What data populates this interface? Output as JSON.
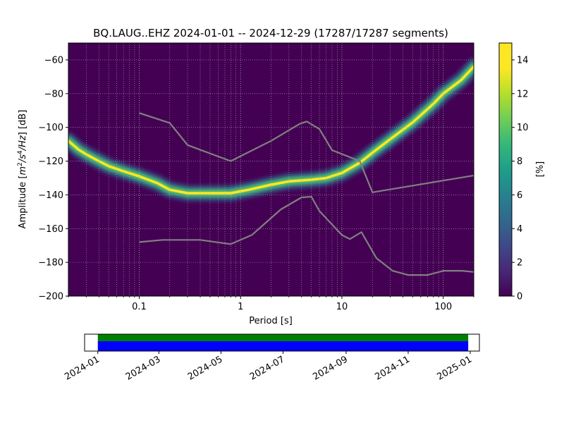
{
  "chart_data": [
    {
      "type": "heatmap",
      "title": "BQ.LAUG..EHZ   2024-01-01 -- 2024-12-29  (17287/17287 segments)",
      "xlabel": "Period [s]",
      "ylabel": "Amplitude [m²/s⁴/Hz] [dB]",
      "ylabel_parts": {
        "prefix": "Amplitude [",
        "m": "m",
        "sup2": "2",
        "mid": "/s",
        "sup4": "4",
        "hz": "/Hz",
        "suffix": "] [dB]"
      },
      "x_scale": "log",
      "xlim": [
        0.02,
        200
      ],
      "ylim": [
        -200,
        -50
      ],
      "x_ticks": [
        {
          "value": 0.1,
          "label": "0.1"
        },
        {
          "value": 1,
          "label": "1"
        },
        {
          "value": 10,
          "label": "10"
        },
        {
          "value": 100,
          "label": "100"
        }
      ],
      "y_ticks": [
        {
          "value": -200,
          "label": "−200"
        },
        {
          "value": -180,
          "label": "−180"
        },
        {
          "value": -160,
          "label": "−160"
        },
        {
          "value": -140,
          "label": "−140"
        },
        {
          "value": -120,
          "label": "−120"
        },
        {
          "value": -100,
          "label": "−100"
        },
        {
          "value": -80,
          "label": "−80"
        },
        {
          "value": -60,
          "label": "−60"
        }
      ],
      "grid": true,
      "colormap": "viridis",
      "background_color": "#440154",
      "colorbar": {
        "label": "[%]",
        "range": [
          0,
          15
        ],
        "ticks": [
          {
            "value": 0,
            "label": "0"
          },
          {
            "value": 2,
            "label": "2"
          },
          {
            "value": 4,
            "label": "4"
          },
          {
            "value": 6,
            "label": "6"
          },
          {
            "value": 8,
            "label": "8"
          },
          {
            "value": 10,
            "label": "10"
          },
          {
            "value": 12,
            "label": "12"
          },
          {
            "value": 14,
            "label": "14"
          }
        ]
      },
      "mode_curve": {
        "period": [
          0.02,
          0.025,
          0.03,
          0.04,
          0.05,
          0.07,
          0.1,
          0.15,
          0.2,
          0.3,
          0.5,
          0.8,
          1.2,
          2,
          3,
          5,
          7,
          10,
          15,
          20,
          30,
          50,
          80,
          100,
          150,
          200
        ],
        "db": [
          -108,
          -113,
          -116,
          -120,
          -123,
          -126,
          -129,
          -133,
          -137,
          -139,
          -139,
          -139,
          -137,
          -134,
          -132,
          -131,
          -130,
          -127,
          -121,
          -115,
          -107,
          -97,
          -86,
          -80,
          -72,
          -64
        ]
      },
      "noise_model_curves": [
        {
          "period": [
            0.1,
            0.2,
            0.3,
            0.8,
            2,
            3.8,
            4.5,
            6,
            8,
            15,
            20,
            200
          ],
          "db": [
            -91.5,
            -97.4,
            -110.5,
            -120,
            -108,
            -98,
            -96.5,
            -101,
            -113.5,
            -120,
            -138.5,
            -128.5
          ]
        },
        {
          "period": [
            0.1,
            0.17,
            0.4,
            0.8,
            1.3,
            2.5,
            4,
            5,
            6,
            10,
            12,
            15.6,
            21.9,
            31.6,
            45,
            70,
            101,
            154,
            200
          ],
          "db": [
            -168,
            -166.7,
            -166.7,
            -169.2,
            -163.7,
            -148.6,
            -141.5,
            -141.1,
            -149.6,
            -163.8,
            -166.2,
            -162.1,
            -177.5,
            -185,
            -187.5,
            -187.5,
            -185,
            -185,
            -185.7
          ]
        }
      ]
    },
    {
      "type": "timeline",
      "x_ticks": [
        {
          "date": "2024-01-01",
          "label": "2024-01"
        },
        {
          "date": "2024-03-01",
          "label": "2024-03"
        },
        {
          "date": "2024-05-01",
          "label": "2024-05"
        },
        {
          "date": "2024-07-01",
          "label": "2024-07"
        },
        {
          "date": "2024-09-01",
          "label": "2024-09"
        },
        {
          "date": "2024-11-01",
          "label": "2024-11"
        },
        {
          "date": "2025-01-01",
          "label": "2025-01"
        }
      ],
      "xlim": [
        "2023-12-19",
        "2025-01-10"
      ],
      "coverage": [
        {
          "color": "#008000",
          "start": "2024-01-01",
          "end": "2024-12-29"
        },
        {
          "color": "#0000ff",
          "start": "2024-01-01",
          "end": "2024-12-29"
        }
      ]
    }
  ]
}
